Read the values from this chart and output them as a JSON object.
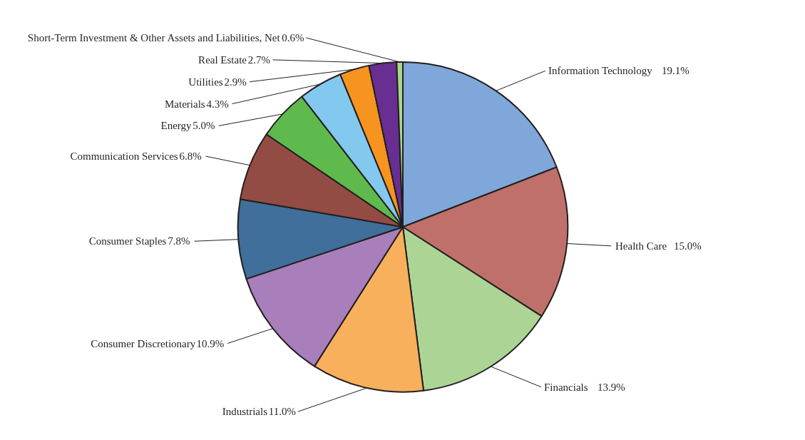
{
  "chart_data": {
    "type": "pie",
    "value_labels": [
      "19.1%",
      "15.0%",
      "13.9%",
      "11.0%",
      "10.9%",
      "7.8%",
      "6.8%",
      "5.0%",
      "4.3%",
      "2.9%",
      "2.7%",
      "0.6%"
    ],
    "categories": [
      "Information Technology",
      "Health Care",
      "Financials",
      "Industrials",
      "Consumer Discretionary",
      "Consumer Staples",
      "Communication Services",
      "Energy",
      "Materials",
      "Utilities",
      "Real Estate",
      "Short-Term Investment & Other Assets and Liabilities, Net"
    ],
    "values": [
      19.1,
      15.0,
      13.9,
      11.0,
      10.9,
      7.8,
      6.8,
      5.0,
      4.3,
      2.9,
      2.7,
      0.6
    ],
    "colors": [
      "#7fa7d9",
      "#c0706a",
      "#acd595",
      "#f8b05c",
      "#a87fba",
      "#3f6f9a",
      "#934c44",
      "#5fba4e",
      "#82c8ef",
      "#f7931f",
      "#692e91",
      "#a8d890"
    ]
  }
}
